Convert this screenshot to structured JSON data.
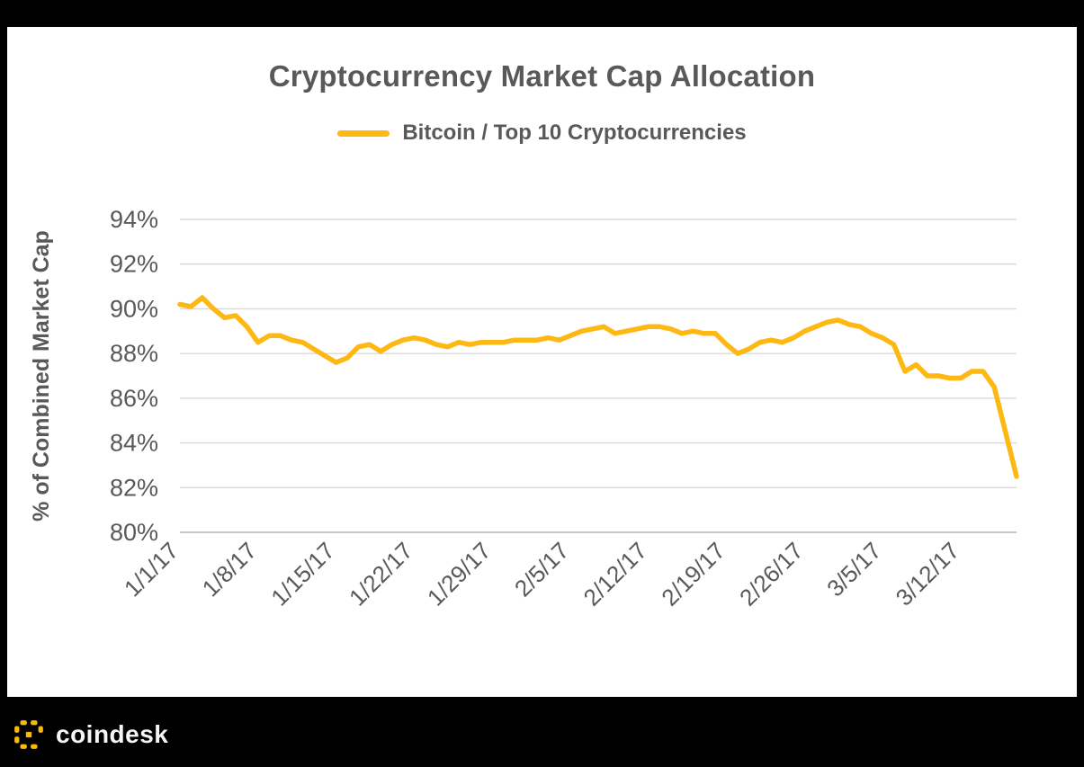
{
  "chart_data": {
    "type": "line",
    "title": "Cryptocurrency Market Cap Allocation",
    "ylabel": "% of Combined Market Cap",
    "xlabel": "",
    "ylim": [
      80,
      94
    ],
    "ytick_step": 2,
    "ytick_suffix": "%",
    "grid": "horizontal",
    "legend_position": "top",
    "legend": [
      {
        "name": "Bitcoin / Top 10 Cryptocurrencies",
        "color": "#FDB813"
      }
    ],
    "x_tick_labels": [
      "1/1/17",
      "1/8/17",
      "1/15/17",
      "1/22/17",
      "1/29/17",
      "2/5/17",
      "2/12/17",
      "2/19/17",
      "2/26/17",
      "3/5/17",
      "3/12/17"
    ],
    "x_tick_indices": [
      0,
      7,
      14,
      21,
      28,
      35,
      42,
      49,
      56,
      63,
      70
    ],
    "dates": [
      "1/1/17",
      "1/2/17",
      "1/3/17",
      "1/4/17",
      "1/5/17",
      "1/6/17",
      "1/7/17",
      "1/8/17",
      "1/9/17",
      "1/10/17",
      "1/11/17",
      "1/12/17",
      "1/13/17",
      "1/14/17",
      "1/15/17",
      "1/16/17",
      "1/17/17",
      "1/18/17",
      "1/19/17",
      "1/20/17",
      "1/21/17",
      "1/22/17",
      "1/23/17",
      "1/24/17",
      "1/25/17",
      "1/26/17",
      "1/27/17",
      "1/28/17",
      "1/29/17",
      "1/30/17",
      "1/31/17",
      "2/1/17",
      "2/2/17",
      "2/3/17",
      "2/4/17",
      "2/5/17",
      "2/6/17",
      "2/7/17",
      "2/8/17",
      "2/9/17",
      "2/10/17",
      "2/11/17",
      "2/12/17",
      "2/13/17",
      "2/14/17",
      "2/15/17",
      "2/16/17",
      "2/17/17",
      "2/18/17",
      "2/19/17",
      "2/20/17",
      "2/21/17",
      "2/22/17",
      "2/23/17",
      "2/24/17",
      "2/25/17",
      "2/26/17",
      "2/27/17",
      "2/28/17",
      "3/1/17",
      "3/2/17",
      "3/3/17",
      "3/4/17",
      "3/5/17",
      "3/6/17",
      "3/7/17",
      "3/8/17",
      "3/9/17",
      "3/10/17",
      "3/11/17",
      "3/12/17",
      "3/13/17",
      "3/14/17",
      "3/15/17",
      "3/16/17",
      "3/17/17"
    ],
    "values": [
      90.2,
      90.1,
      90.5,
      90.0,
      89.6,
      89.7,
      89.2,
      88.5,
      88.8,
      88.8,
      88.6,
      88.5,
      88.2,
      87.9,
      87.6,
      87.8,
      88.3,
      88.4,
      88.1,
      88.4,
      88.6,
      88.7,
      88.6,
      88.4,
      88.3,
      88.5,
      88.4,
      88.5,
      88.5,
      88.5,
      88.6,
      88.6,
      88.6,
      88.7,
      88.6,
      88.8,
      89.0,
      89.1,
      89.2,
      88.9,
      89.0,
      89.1,
      89.2,
      89.2,
      89.1,
      88.9,
      89.0,
      88.9,
      88.9,
      88.4,
      88.0,
      88.2,
      88.5,
      88.6,
      88.5,
      88.7,
      89.0,
      89.2,
      89.4,
      89.5,
      89.3,
      89.2,
      88.9,
      88.7,
      88.4,
      87.2,
      87.5,
      87.0,
      87.0,
      86.9,
      86.9,
      87.2,
      87.2,
      86.5,
      84.5,
      82.5
    ],
    "text_color": "#595959",
    "gridline_color": "#d9d9d9",
    "axis_color": "#bfbfbf"
  },
  "footer": {
    "brand": "coindesk",
    "logo_color": "#F7B90D"
  }
}
